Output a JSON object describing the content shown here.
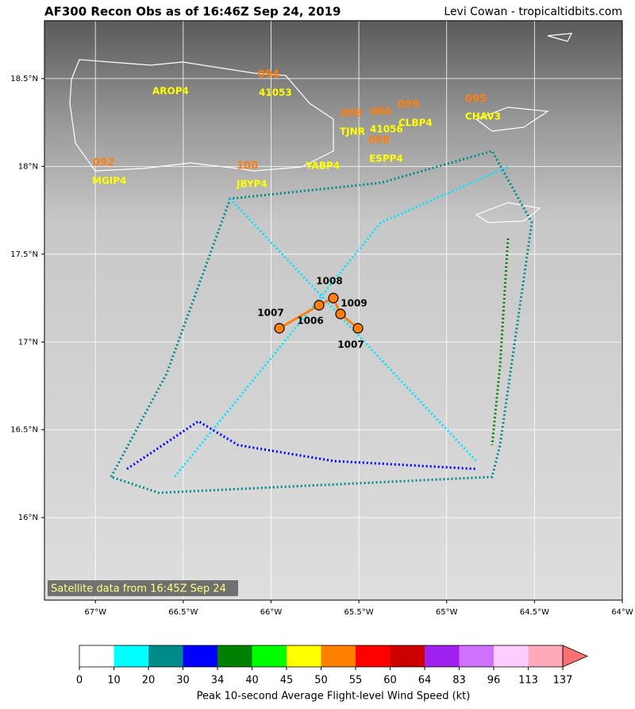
{
  "header": {
    "title": "AF300 Recon Obs as of 16:46Z Sep 24, 2019",
    "credit": "Levi Cowan - tropicaltidbits.com"
  },
  "map": {
    "satellite_label": "Satellite data from 16:45Z Sep 24",
    "xlim": [
      -67.29,
      -64
    ],
    "ylim": [
      15.53,
      18.83
    ],
    "xticks": [
      {
        "value": -67,
        "label": "67°W"
      },
      {
        "value": -66.5,
        "label": "66.5°W"
      },
      {
        "value": -66,
        "label": "66°W"
      },
      {
        "value": -65.5,
        "label": "65.5°W"
      },
      {
        "value": -65,
        "label": "65°W"
      },
      {
        "value": -64.5,
        "label": "64.5°W"
      },
      {
        "value": -64,
        "label": "64°W"
      }
    ],
    "yticks": [
      {
        "value": 16,
        "label": "16°N"
      },
      {
        "value": 16.5,
        "label": "16.5°N"
      },
      {
        "value": 17,
        "label": "17°N"
      },
      {
        "value": 17.5,
        "label": "17.5°N"
      },
      {
        "value": 18,
        "label": "18°N"
      },
      {
        "value": 18.5,
        "label": "18.5°N"
      }
    ]
  },
  "stations": [
    "AROP4",
    "41053",
    "TJNR",
    "41056",
    "CLBP4",
    "CHAV3",
    "YABP4",
    "ESPP4",
    "MGIP4",
    "JBYP4"
  ],
  "station_obs": [
    "092",
    "100",
    "098",
    "084",
    "099",
    "095",
    "098",
    "094"
  ],
  "pressure_obs": [
    1007,
    1006,
    1008,
    1009,
    1007
  ],
  "colorbar": {
    "label": "Peak 10-second Average Flight-level Wind Speed (kt)",
    "bounds": [
      0,
      10,
      20,
      30,
      34,
      40,
      45,
      50,
      55,
      60,
      64,
      83,
      96,
      113,
      137
    ],
    "colors": [
      "#ffffff",
      "#00ffff",
      "#008b8b",
      "#0000ff",
      "#008000",
      "#00ff00",
      "#ffff00",
      "#ff7f00",
      "#ff0000",
      "#cd0000",
      "#a020f0",
      "#d070ff",
      "#ffccff",
      "#ffaabb"
    ],
    "extend_color": "#ff7070"
  }
}
